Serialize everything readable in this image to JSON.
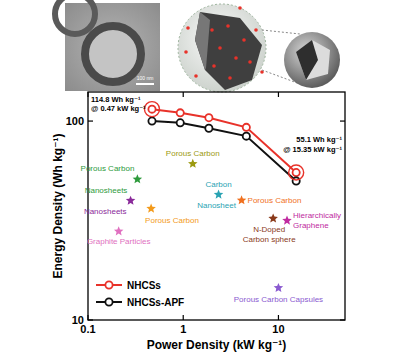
{
  "figure": {
    "scale_bar": "100 nm"
  },
  "chart_data": {
    "type": "line",
    "x_label": "Power Density (kW kg⁻¹)",
    "y_label": "Energy Density (Wh kg⁻¹)",
    "log": true,
    "xlim": [
      0.1,
      50
    ],
    "ylim": [
      10,
      140
    ],
    "xticks": [
      0.1,
      1,
      10
    ],
    "yticks": [
      10,
      100
    ],
    "legend": "lower left",
    "x": [
      0.47,
      0.93,
      1.86,
      4.6,
      15.35
    ],
    "series": [
      {
        "name": "NHCSs",
        "color": "#e8322a",
        "marker": "circle",
        "values": [
          114.8,
          110,
          104,
          93,
          55.1
        ]
      },
      {
        "name": "NHCSs-APF",
        "color": "#111111",
        "marker": "circle",
        "values": [
          100,
          98,
          92,
          84,
          50
        ]
      }
    ],
    "points": [
      {
        "label": [
          "Porous Carbon",
          "Nanosheets"
        ],
        "color": "#2e9a3c",
        "marker": "star",
        "x": 0.33,
        "y": 51
      },
      {
        "label": [
          "Porous Carbon"
        ],
        "color": "#9c9a10",
        "marker": "star",
        "x": 1.26,
        "y": 61
      },
      {
        "label": [
          "Carbon",
          "Nanosheet"
        ],
        "color": "#2aa3b3",
        "marker": "star",
        "x": 2.35,
        "y": 42.7
      },
      {
        "label": [
          "Porous Carbon"
        ],
        "color": "#f0701e",
        "marker": "star",
        "x": 4.1,
        "y": 40
      },
      {
        "label": [
          "Nanosheets"
        ],
        "color": "#8a2a9a",
        "marker": "star",
        "x": 0.28,
        "y": 39.8
      },
      {
        "label": [
          "Porous Carbon"
        ],
        "color": "#f39a1a",
        "marker": "star",
        "x": 0.46,
        "y": 36.3
      },
      {
        "label": [
          "Graphite Particles"
        ],
        "color": "#e070c0",
        "marker": "star",
        "x": 0.21,
        "y": 27.9
      },
      {
        "label": [
          "N-Doped",
          "Carbon sphere"
        ],
        "color": "#8a3a1a",
        "marker": "star",
        "x": 8.8,
        "y": 32.4
      },
      {
        "label": [
          "Hierarchically",
          "Graphene"
        ],
        "color": "#c02aa0",
        "marker": "star",
        "x": 12.3,
        "y": 31.6
      },
      {
        "label": [
          "Porous Carbon Capsules"
        ],
        "color": "#8a5ad0",
        "marker": "star",
        "x": 10,
        "y": 14.5
      }
    ],
    "annotations": [
      {
        "text": [
          "114.8 Wh kg⁻¹",
          "@ 0.47 kW kg⁻¹"
        ]
      },
      {
        "text": [
          "55.1 Wh kg⁻¹",
          "@ 15.35 kW kg⁻¹"
        ]
      }
    ]
  }
}
